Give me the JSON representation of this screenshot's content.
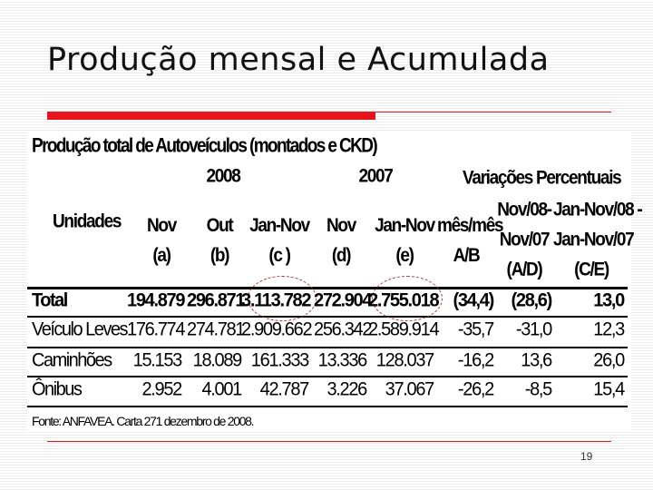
{
  "slide": {
    "title": "Produção mensal e Acumulada",
    "page_number": "19"
  },
  "table": {
    "title": "Produção total de Autoveículos (montados e CKD)",
    "group_2008": "2008",
    "group_2007": "2007",
    "group_var": "Variações Percentuais",
    "unidades": "Unidades",
    "col_headers": [
      [
        "Nov",
        "(a)"
      ],
      [
        "Out",
        "(b)"
      ],
      [
        "Jan-Nov",
        "(c )"
      ],
      [
        "Nov",
        "(d)"
      ],
      [
        "Jan-Nov",
        "(e)"
      ],
      [
        "mês/mês",
        "A/B"
      ],
      [
        "Nov/08-",
        "Nov/07",
        "(A/D)"
      ],
      [
        "Jan-Nov/08 -",
        "Jan-Nov/07",
        "(C/E)"
      ]
    ],
    "rows": [
      {
        "label": "Total",
        "values": [
          "194.879",
          "296.871",
          "3.113.782",
          "272.904",
          "2.755.018",
          "(34,4)",
          "(28,6)",
          "13,0"
        ]
      },
      {
        "label": "Veículo Leves",
        "values": [
          "176.774",
          "274.781",
          "2.909.662",
          "256.342",
          "2.589.914",
          "-35,7",
          "-31,0",
          "12,3"
        ]
      },
      {
        "label": "Caminhões",
        "values": [
          "15.153",
          "18.089",
          "161.333",
          "13.336",
          "128.037",
          "-16,2",
          "13,6",
          "26,0"
        ]
      },
      {
        "label": "Ônibus",
        "values": [
          "2.952",
          "4.001",
          "42.787",
          "3.226",
          "37.067",
          "-26,2",
          "-8,5",
          "15,4"
        ]
      }
    ],
    "source": "Fonte: ANFAVEA. Carta 271 dezembro de 2008."
  },
  "colors": {
    "accent_red": "#e8141b",
    "ellipse": "#b0403a"
  }
}
